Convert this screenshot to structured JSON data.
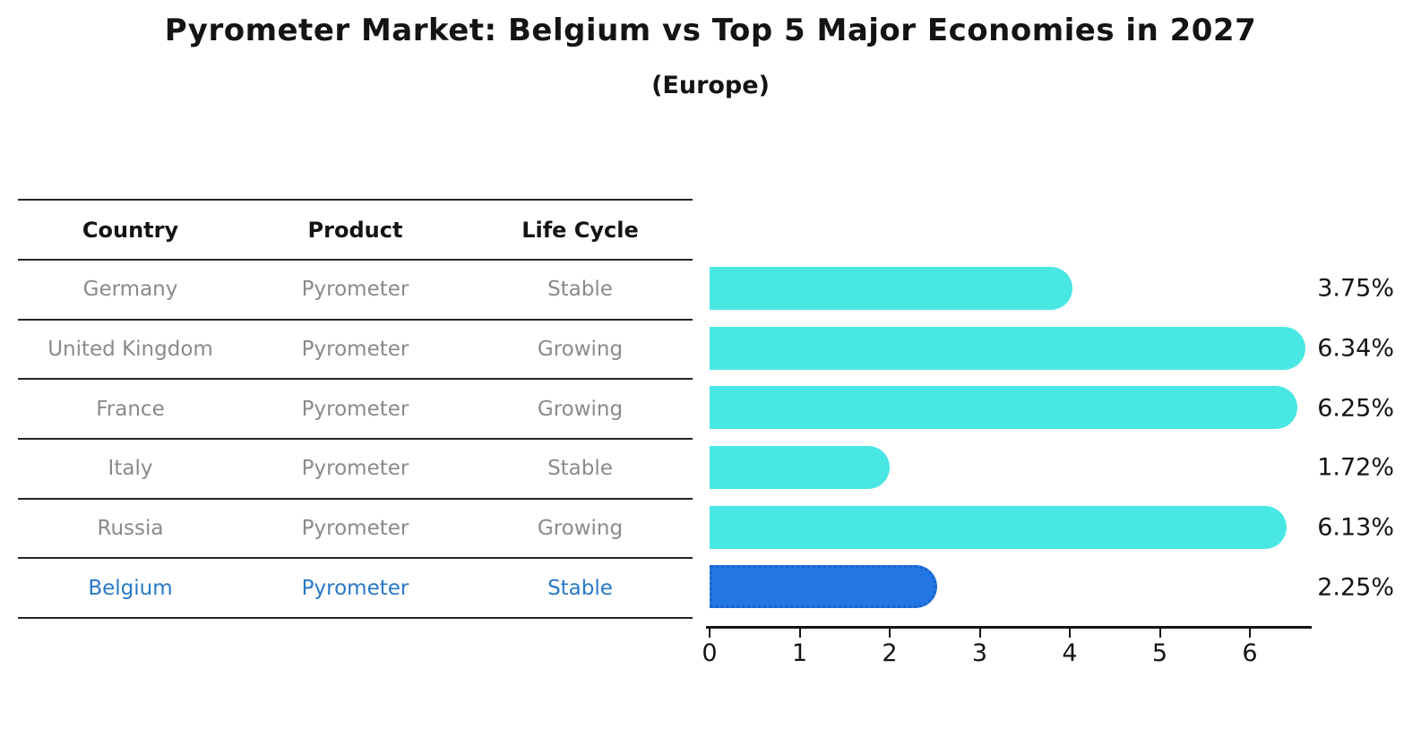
{
  "title": "Pyrometer Market: Belgium vs Top 5 Major Economies in 2027",
  "subtitle": "(Europe)",
  "colors": {
    "bar_default": "#49e7e4",
    "bar_highlight": "#2277e2",
    "highlight_border": "#1b63ce",
    "highlight_text": "#2878c8",
    "row_text": "#8a8a8a",
    "ink": "#141414"
  },
  "table": {
    "headers": [
      "Country",
      "Product",
      "Life Cycle"
    ],
    "rows": [
      {
        "country": "Germany",
        "product": "Pyrometer",
        "life_cycle": "Stable",
        "highlight": false
      },
      {
        "country": "United Kingdom",
        "product": "Pyrometer",
        "life_cycle": "Growing",
        "highlight": false
      },
      {
        "country": "France",
        "product": "Pyrometer",
        "life_cycle": "Growing",
        "highlight": false
      },
      {
        "country": "Italy",
        "product": "Pyrometer",
        "life_cycle": "Stable",
        "highlight": false
      },
      {
        "country": "Russia",
        "product": "Pyrometer",
        "life_cycle": "Growing",
        "highlight": false
      },
      {
        "country": "Belgium",
        "product": "Pyrometer",
        "life_cycle": "Stable",
        "highlight": true
      }
    ]
  },
  "chart_data": {
    "type": "bar",
    "orientation": "horizontal",
    "title": "Pyrometer Market: Belgium vs Top 5 Major Economies in 2027 (Europe)",
    "categories": [
      "Germany",
      "United Kingdom",
      "France",
      "Italy",
      "Russia",
      "Belgium"
    ],
    "values": [
      3.75,
      6.34,
      6.25,
      1.72,
      6.13,
      2.25
    ],
    "value_labels": [
      "3.75%",
      "6.34%",
      "6.25%",
      "1.72%",
      "6.13%",
      "2.25%"
    ],
    "highlight_category": "Belgium",
    "x_ticks": [
      "0",
      "1",
      "2",
      "3",
      "4",
      "5",
      "6"
    ],
    "xlim": [
      0,
      6.6
    ],
    "xlabel": "",
    "ylabel": "",
    "grid": false,
    "legend": "none"
  }
}
